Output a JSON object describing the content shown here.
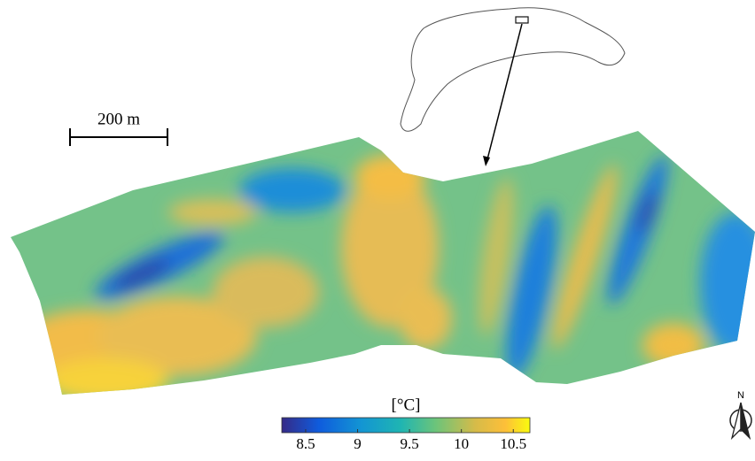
{
  "scale_bar": {
    "label": "200 m"
  },
  "north_label": "N",
  "colorbar": {
    "title": "[°C]",
    "range": [
      8.27,
      10.66
    ],
    "ticks": [
      8.5,
      9,
      9.5,
      10,
      10.5
    ]
  }
}
